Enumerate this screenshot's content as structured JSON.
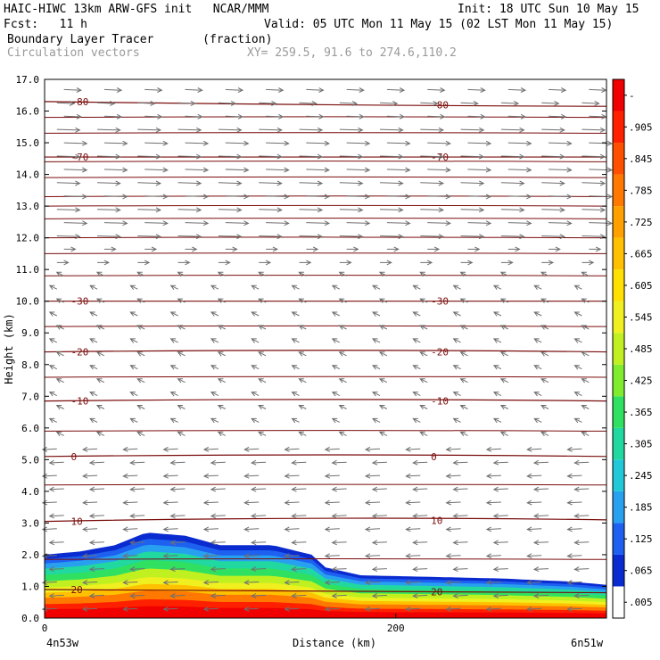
{
  "header": {
    "model_line": "HAIC-HIWC 13km ARW-GFS init   NCAR/MMM",
    "init_line": "Init: 18 UTC Sun 10 May 15",
    "fcst_line": "Fcst:   11 h",
    "valid_line": "Valid: 05 UTC Mon 11 May 15 (02 LST Mon 11 May 15)",
    "field_line": "Boundary Layer Tracer       (fraction)",
    "vectors_label": "Circulation vectors",
    "xy_line": "XY= 259.5, 91.6 to 274.6,110.2"
  },
  "chart_data": {
    "type": "heatmap",
    "title": "Boundary Layer Tracer",
    "units": "(fraction)",
    "xlabel": "Distance (km)",
    "ylabel": "Height (km)",
    "xlim": [
      0,
      320
    ],
    "ylim": [
      0,
      17
    ],
    "xticks": [
      {
        "value": 0,
        "label": "0"
      },
      {
        "value": 200,
        "label": "200"
      }
    ],
    "x_end_labels": {
      "left": "4n53w",
      "right": "6n51w"
    },
    "yticks": [
      "0.0",
      "1.0",
      "2.0",
      "3.0",
      "4.0",
      "5.0",
      "6.0",
      "7.0",
      "8.0",
      "9.0",
      "10.0",
      "11.0",
      "12.0",
      "13.0",
      "14.0",
      "15.0",
      "16.0",
      "17.0"
    ],
    "colorbar": {
      "labels": [
        ".005",
        ".065",
        ".125",
        ".185",
        ".245",
        ".305",
        ".365",
        ".425",
        ".485",
        ".545",
        ".605",
        ".665",
        ".725",
        ".785",
        ".845",
        ".905",
        "-"
      ],
      "colors": [
        "#ffffff",
        "#0a2bd0",
        "#1e60f0",
        "#28a0f0",
        "#20c8d8",
        "#20d8a0",
        "#30e060",
        "#80ec30",
        "#c0f020",
        "#f0f020",
        "#ffe000",
        "#ffc000",
        "#ffa000",
        "#ff7800",
        "#ff5000",
        "#ff2000",
        "#f00000"
      ]
    },
    "tracer_top_km": [
      {
        "x": 0,
        "top": 2.0
      },
      {
        "x": 20,
        "top": 2.1
      },
      {
        "x": 40,
        "top": 2.3
      },
      {
        "x": 58,
        "top": 2.7
      },
      {
        "x": 80,
        "top": 2.6
      },
      {
        "x": 100,
        "top": 2.3
      },
      {
        "x": 130,
        "top": 2.3
      },
      {
        "x": 152,
        "top": 2.0
      },
      {
        "x": 160,
        "top": 1.6
      },
      {
        "x": 180,
        "top": 1.35
      },
      {
        "x": 220,
        "top": 1.3
      },
      {
        "x": 260,
        "top": 1.25
      },
      {
        "x": 300,
        "top": 1.15
      },
      {
        "x": 320,
        "top": 1.05
      }
    ],
    "temperature_contours": {
      "units": "C",
      "lines": [
        {
          "value": 20,
          "heights": [
            0.9,
            0.85,
            0.8
          ],
          "label": "20"
        },
        {
          "value": 10,
          "heights": [
            3.05,
            3.15,
            3.1
          ],
          "label": "10"
        },
        {
          "value": 0,
          "heights": [
            5.1,
            5.15,
            5.1
          ],
          "label": "0"
        },
        {
          "value": -10,
          "heights": [
            6.85,
            6.9,
            6.85
          ],
          "label": "-10"
        },
        {
          "value": -20,
          "heights": [
            8.4,
            8.45,
            8.4
          ],
          "label": "-20"
        },
        {
          "value": -30,
          "heights": [
            10.0,
            10.0,
            10.0
          ],
          "label": "-30"
        },
        {
          "value": -70,
          "heights": [
            14.55,
            14.55,
            14.55
          ],
          "label": "-70"
        },
        {
          "value": -80,
          "heights": [
            16.3,
            16.2,
            16.15
          ],
          "label": "-80"
        }
      ],
      "unlabeled_heights": [
        1.85,
        4.2,
        5.9,
        7.6,
        9.2,
        10.8,
        11.5,
        12.0,
        12.6,
        13.0,
        13.3,
        13.9,
        14.4,
        15.3,
        15.8
      ]
    },
    "vectors": {
      "note_levels": [
        {
          "z_min": 0.0,
          "z_max": 5.5,
          "u": -1.0,
          "w": -0.05
        },
        {
          "z_min": 5.5,
          "z_max": 11.0,
          "u": -0.5,
          "w": 0.25
        },
        {
          "z_min": 11.0,
          "z_max": 12.0,
          "u": 0.8,
          "w": 0.0
        },
        {
          "z_min": 12.0,
          "z_max": 15.5,
          "u": 1.6,
          "w": -0.05
        },
        {
          "z_min": 15.5,
          "z_max": 17.0,
          "u": 1.2,
          "w": -0.05
        }
      ]
    }
  }
}
